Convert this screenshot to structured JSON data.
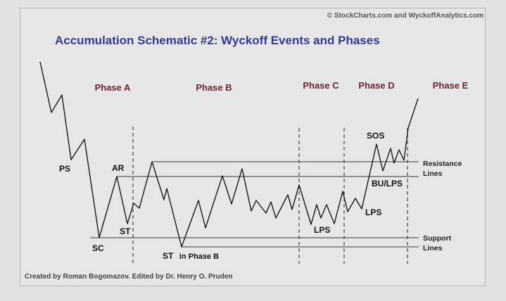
{
  "copyright": "© StockCharts.com and WyckoffAnalytics.com",
  "title": "Accumulation Schematic #2: Wyckoff Events and Phases",
  "phases": [
    "Phase A",
    "Phase B",
    "Phase C",
    "Phase D",
    "Phase E"
  ],
  "events": {
    "ps": "PS",
    "sc": "SC",
    "ar": "AR",
    "st": "ST",
    "st_phase_b_main": "ST",
    "st_phase_b_suffix": "in Phase B",
    "lps_c": "LPS",
    "lps_d": "LPS",
    "sos": "SOS",
    "bu_lps": "BU/LPS"
  },
  "lines": {
    "resistance_1": "Resistance",
    "resistance_2": "Lines",
    "support_1": "Support",
    "support_2": "Lines"
  },
  "credit": "Created by Roman Bogomazov. Edited by Dr. Henry O. Pruden",
  "colors": {
    "background": "#e2e2e2",
    "title": "#333a8c",
    "phase": "#6b2430",
    "line": "#1a1a1a"
  }
}
